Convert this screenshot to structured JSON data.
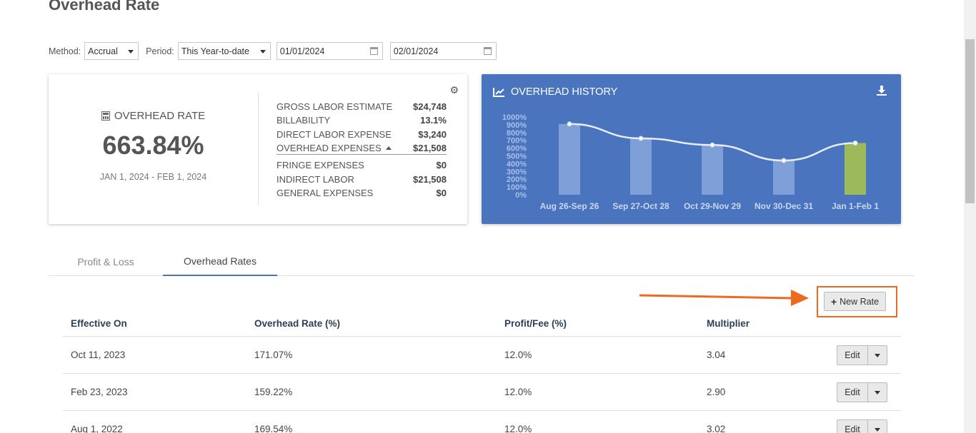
{
  "page": {
    "title": "Overhead Rate"
  },
  "filters": {
    "method_label": "Method:",
    "method_value": "Accrual",
    "period_label": "Period:",
    "period_value": "This Year-to-date",
    "start_date": "01/01/2024",
    "end_date": "02/01/2024"
  },
  "summary": {
    "rate_label": "OVERHEAD RATE",
    "rate_value": "663.84%",
    "date_range": "JAN 1, 2024 - FEB 1, 2024",
    "rows": [
      {
        "label": "GROSS LABOR ESTIMATE",
        "value": "$24,748"
      },
      {
        "label": "BILLABILITY",
        "value": "13.1%"
      },
      {
        "label": "DIRECT LABOR EXPENSE",
        "value": "$3,240"
      },
      {
        "label": "OVERHEAD EXPENSES",
        "value": "$21,508"
      }
    ],
    "sub_rows": [
      {
        "label": "FRINGE EXPENSES",
        "value": "$0"
      },
      {
        "label": "INDIRECT LABOR",
        "value": "$21,508"
      },
      {
        "label": "GENERAL EXPENSES",
        "value": "$0"
      }
    ]
  },
  "history": {
    "title": "OVERHEAD HISTORY",
    "colors": {
      "card": "#4a74bd",
      "bar": "#7f9fd8",
      "highlight_bar": "#9cba5a",
      "line": "#e8eef8"
    }
  },
  "chart_data": {
    "type": "bar",
    "categories": [
      "Aug 26-Sep 26",
      "Sep 27-Oct 28",
      "Oct 29-Nov 29",
      "Nov 30-Dec 31",
      "Jan 1-Feb 1"
    ],
    "values": [
      910,
      725,
      640,
      440,
      665
    ],
    "line_values": [
      910,
      725,
      640,
      440,
      665
    ],
    "yticks": [
      "1000%",
      "900%",
      "800%",
      "700%",
      "600%",
      "500%",
      "400%",
      "300%",
      "200%",
      "100%",
      "0%"
    ],
    "ylim": [
      0,
      1000
    ],
    "highlight_index": 4,
    "grid": false
  },
  "tabs": [
    {
      "label": "Profit & Loss",
      "active": false
    },
    {
      "label": "Overhead Rates",
      "active": true
    }
  ],
  "actions": {
    "new_rate_label": "New Rate"
  },
  "table": {
    "headers": [
      "Effective On",
      "Overhead Rate (%)",
      "Profit/Fee (%)",
      "Multiplier"
    ],
    "edit_label": "Edit",
    "rows": [
      {
        "effective_on": "Oct 11, 2023",
        "overhead_rate": "171.07%",
        "profit_fee": "12.0%",
        "multiplier": "3.04"
      },
      {
        "effective_on": "Feb 23, 2023",
        "overhead_rate": "159.22%",
        "profit_fee": "12.0%",
        "multiplier": "2.90"
      },
      {
        "effective_on": "Aug 1, 2022",
        "overhead_rate": "169.54%",
        "profit_fee": "12.0%",
        "multiplier": "3.02"
      }
    ]
  }
}
